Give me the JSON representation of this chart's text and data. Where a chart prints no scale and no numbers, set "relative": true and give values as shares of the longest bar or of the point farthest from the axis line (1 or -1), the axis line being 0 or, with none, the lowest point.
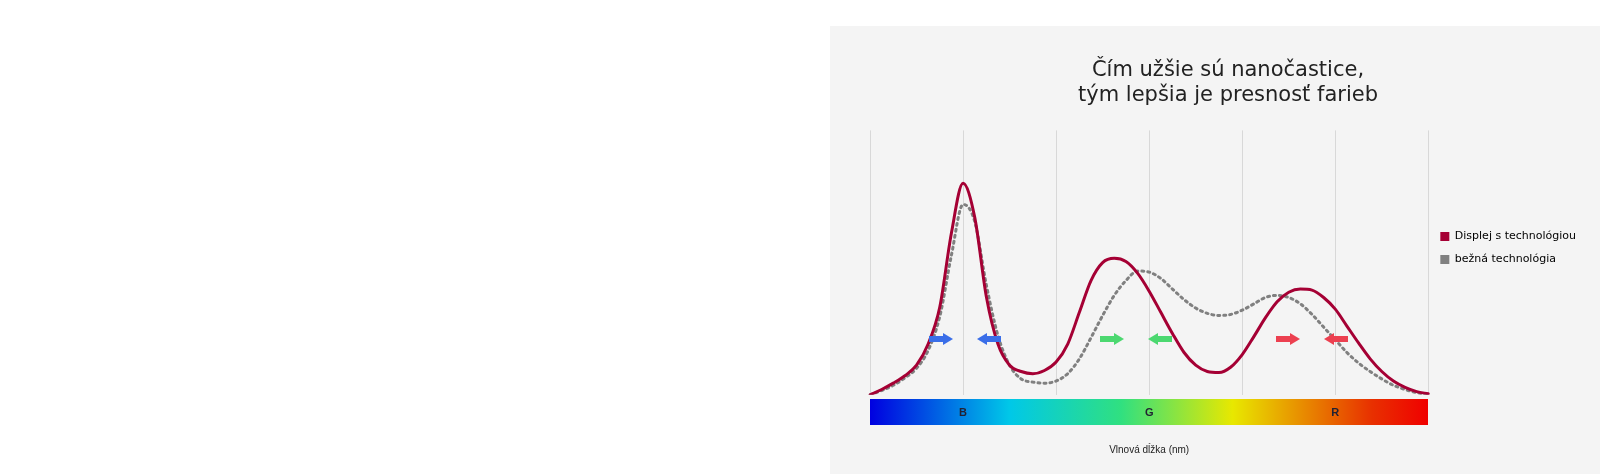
{
  "chart_data": {
    "type": "line",
    "title": "Čím užšie sú nanočastice,\ntým lepšia je presnosť farieb",
    "xlabel": "Vlnová dĺžka (nm)",
    "relative": true,
    "grid": "x",
    "legend": "right",
    "marker": "none",
    "categories": [
      null,
      null,
      null,
      null,
      null,
      null,
      null,
      null,
      "B",
      null,
      null,
      null,
      null,
      null,
      null,
      null,
      null,
      null,
      null,
      null,
      null,
      null,
      null,
      null,
      "G",
      null,
      null,
      null,
      null,
      null,
      null,
      null,
      null,
      null,
      null,
      null,
      null,
      null,
      null,
      null,
      "R",
      null,
      null,
      null,
      null,
      null,
      null,
      null,
      null
    ],
    "series": [
      {
        "name": "Displej s technológiou",
        "color": "#a50034",
        "line_style": "solid",
        "values": [
          0,
          0.025,
          0.055,
          0.09,
          0.14,
          0.24,
          0.415,
          0.765,
          1,
          0.84,
          0.465,
          0.24,
          0.14,
          0.11,
          0.1,
          0.115,
          0.155,
          0.24,
          0.39,
          0.54,
          0.625,
          0.645,
          0.63,
          0.575,
          0.49,
          0.39,
          0.29,
          0.2,
          0.14,
          0.11,
          0.105,
          0.13,
          0.19,
          0.275,
          0.365,
          0.44,
          0.485,
          0.5,
          0.495,
          0.46,
          0.405,
          0.325,
          0.245,
          0.17,
          0.11,
          0.065,
          0.035,
          0.015,
          0.005
        ]
      },
      {
        "name": "bežná technológia",
        "color": "#808080",
        "line_style": "dotted",
        "values": [
          0,
          0.02,
          0.045,
          0.08,
          0.125,
          0.21,
          0.37,
          0.66,
          0.9,
          0.82,
          0.52,
          0.28,
          0.14,
          0.075,
          0.06,
          0.055,
          0.065,
          0.1,
          0.17,
          0.27,
          0.375,
          0.47,
          0.54,
          0.585,
          0.58,
          0.55,
          0.5,
          0.45,
          0.41,
          0.385,
          0.375,
          0.38,
          0.4,
          0.43,
          0.46,
          0.47,
          0.46,
          0.43,
          0.38,
          0.32,
          0.26,
          0.2,
          0.15,
          0.11,
          0.075,
          0.045,
          0.025,
          0.01,
          0
        ]
      }
    ]
  }
}
